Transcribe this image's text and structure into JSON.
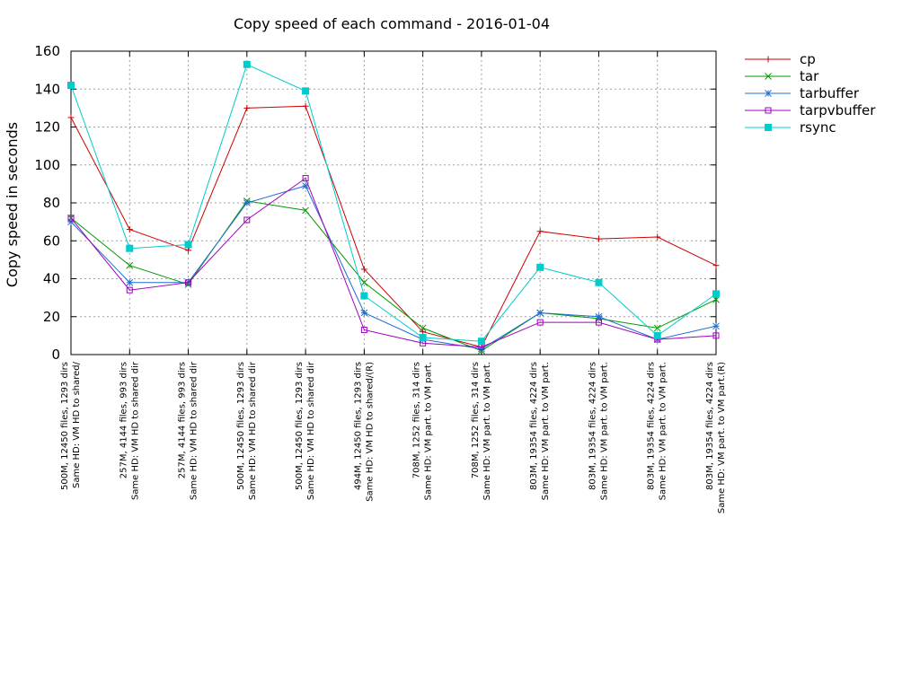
{
  "chart_data": {
    "type": "line",
    "title": "Copy speed of each command - 2016-01-04",
    "xlabel": "",
    "ylabel": "Copy speed in seconds",
    "ylim": [
      0,
      160
    ],
    "yticks": [
      0,
      20,
      40,
      60,
      80,
      100,
      120,
      140,
      160
    ],
    "grid": true,
    "legend_position": "outside right top",
    "categories": [
      [
        "500M, 12450 files, 1293 dirs",
        "Same HD: VM HD to shared/"
      ],
      [
        "257M, 4144 files, 993 dirs",
        "Same HD: VM HD to shared dir"
      ],
      [
        "257M, 4144 files, 993 dirs",
        "Same HD: VM HD to shared dir"
      ],
      [
        "500M, 12450 files, 1293 dirs",
        "Same HD: VM HD to shared dir"
      ],
      [
        "500M, 12450 files, 1293 dirs",
        "Same HD: VM HD to shared dir"
      ],
      [
        "494M, 12450 files, 1293 dirs",
        "Same HD: VM HD to shared/(R)"
      ],
      [
        "708M, 1252 files, 314 dirs",
        "Same HD: VM part. to VM part."
      ],
      [
        "708M, 1252 files, 314 dirs",
        "Same HD: VM part. to VM part."
      ],
      [
        "803M, 19354 files, 4224 dirs",
        "Same HD: VM part. to VM part."
      ],
      [
        "803M, 19354 files, 4224 dirs",
        "Same HD: VM part. to VM part."
      ],
      [
        "803M, 19354 files, 4224 dirs",
        "Same HD: VM part. to VM part."
      ],
      [
        "803M, 19354 files, 4224 dirs",
        "Same HD: VM part. to VM part.(R)"
      ]
    ],
    "series": [
      {
        "name": "cp",
        "color": "#cc0000",
        "marker": "plus",
        "values": [
          125,
          66,
          55,
          130,
          131,
          45,
          12,
          4,
          65,
          61,
          62,
          47
        ]
      },
      {
        "name": "tar",
        "color": "#009900",
        "marker": "cross",
        "values": [
          72,
          47,
          37,
          81,
          76,
          38,
          14,
          2,
          22,
          19,
          14,
          29
        ]
      },
      {
        "name": "tarbuffer",
        "color": "#1f6fd0",
        "marker": "star",
        "values": [
          70,
          38,
          38,
          80,
          89,
          22,
          8,
          3,
          22,
          20,
          8,
          15
        ]
      },
      {
        "name": "tarpvbuffer",
        "color": "#a000c0",
        "marker": "square-open",
        "values": [
          72,
          34,
          38,
          71,
          93,
          13,
          6,
          4,
          17,
          17,
          8,
          10
        ]
      },
      {
        "name": "rsync",
        "color": "#00cccc",
        "marker": "square-filled",
        "values": [
          142,
          56,
          58,
          153,
          139,
          31,
          9,
          7,
          46,
          38,
          10,
          32
        ]
      }
    ]
  }
}
